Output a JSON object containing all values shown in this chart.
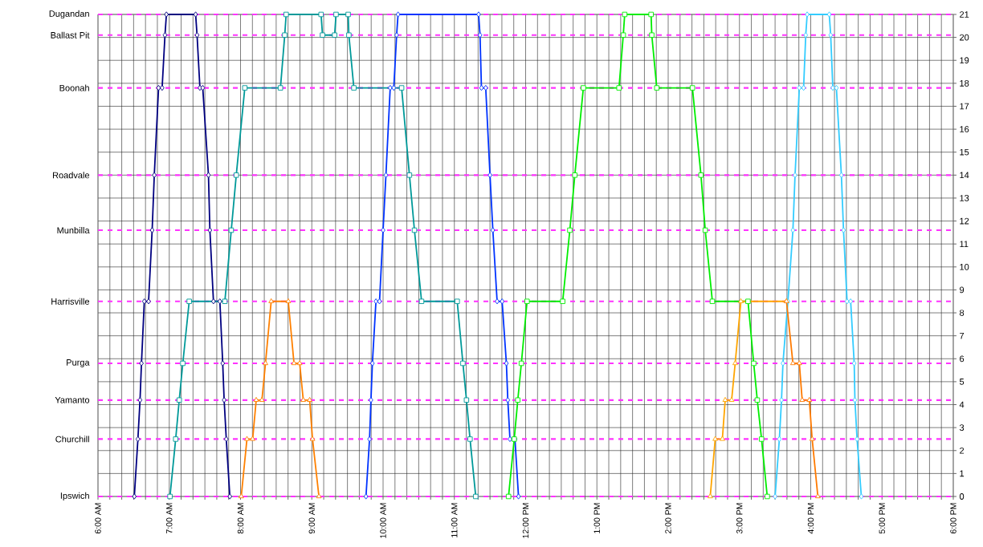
{
  "chart_data": {
    "type": "line",
    "grid": true,
    "xlim": [
      6,
      18
    ],
    "ylim": [
      0,
      21
    ],
    "xticks": [
      {
        "value": 6,
        "label": "6:00 AM"
      },
      {
        "value": 6.1667,
        "label": null
      },
      {
        "value": 6.3333,
        "label": null
      },
      {
        "value": 6.5,
        "label": null
      },
      {
        "value": 6.6667,
        "label": null
      },
      {
        "value": 6.8333,
        "label": null
      },
      {
        "value": 7,
        "label": "7:00 AM"
      },
      {
        "value": 7.1667,
        "label": null
      },
      {
        "value": 7.3333,
        "label": null
      },
      {
        "value": 7.5,
        "label": null
      },
      {
        "value": 7.6667,
        "label": null
      },
      {
        "value": 7.8333,
        "label": null
      },
      {
        "value": 8,
        "label": "8:00 AM"
      },
      {
        "value": 8.1667,
        "label": null
      },
      {
        "value": 8.3333,
        "label": null
      },
      {
        "value": 8.5,
        "label": null
      },
      {
        "value": 8.6667,
        "label": null
      },
      {
        "value": 8.8333,
        "label": null
      },
      {
        "value": 9,
        "label": "9:00 AM"
      },
      {
        "value": 9.1667,
        "label": null
      },
      {
        "value": 9.3333,
        "label": null
      },
      {
        "value": 9.5,
        "label": null
      },
      {
        "value": 9.6667,
        "label": null
      },
      {
        "value": 9.8333,
        "label": null
      },
      {
        "value": 10,
        "label": "10:00 AM"
      },
      {
        "value": 10.1667,
        "label": null
      },
      {
        "value": 10.3333,
        "label": null
      },
      {
        "value": 10.5,
        "label": null
      },
      {
        "value": 10.6667,
        "label": null
      },
      {
        "value": 10.8333,
        "label": null
      },
      {
        "value": 11,
        "label": "11:00 AM"
      },
      {
        "value": 11.1667,
        "label": null
      },
      {
        "value": 11.3333,
        "label": null
      },
      {
        "value": 11.5,
        "label": null
      },
      {
        "value": 11.6667,
        "label": null
      },
      {
        "value": 11.8333,
        "label": null
      },
      {
        "value": 12,
        "label": "12:00 PM"
      },
      {
        "value": 12.1667,
        "label": null
      },
      {
        "value": 12.3333,
        "label": null
      },
      {
        "value": 12.5,
        "label": null
      },
      {
        "value": 12.6667,
        "label": null
      },
      {
        "value": 12.8333,
        "label": null
      },
      {
        "value": 13,
        "label": "1:00 PM"
      },
      {
        "value": 13.1667,
        "label": null
      },
      {
        "value": 13.3333,
        "label": null
      },
      {
        "value": 13.5,
        "label": null
      },
      {
        "value": 13.6667,
        "label": null
      },
      {
        "value": 13.8333,
        "label": null
      },
      {
        "value": 14,
        "label": "2:00 PM"
      },
      {
        "value": 14.1667,
        "label": null
      },
      {
        "value": 14.3333,
        "label": null
      },
      {
        "value": 14.5,
        "label": null
      },
      {
        "value": 14.6667,
        "label": null
      },
      {
        "value": 14.8333,
        "label": null
      },
      {
        "value": 15,
        "label": "3:00 PM"
      },
      {
        "value": 15.1667,
        "label": null
      },
      {
        "value": 15.3333,
        "label": null
      },
      {
        "value": 15.5,
        "label": null
      },
      {
        "value": 15.6667,
        "label": null
      },
      {
        "value": 15.8333,
        "label": null
      },
      {
        "value": 16,
        "label": "4:00 PM"
      },
      {
        "value": 16.1667,
        "label": null
      },
      {
        "value": 16.3333,
        "label": null
      },
      {
        "value": 16.5,
        "label": null
      },
      {
        "value": 16.6667,
        "label": null
      },
      {
        "value": 16.8333,
        "label": null
      },
      {
        "value": 17,
        "label": "5:00 PM"
      },
      {
        "value": 17.1667,
        "label": null
      },
      {
        "value": 17.3333,
        "label": null
      },
      {
        "value": 17.5,
        "label": null
      },
      {
        "value": 17.6667,
        "label": null
      },
      {
        "value": 17.8333,
        "label": null
      },
      {
        "value": 18,
        "label": "6:00 PM"
      }
    ],
    "yticks": [
      0,
      1,
      2,
      3,
      4,
      5,
      6,
      7,
      8,
      9,
      10,
      11,
      12,
      13,
      14,
      15,
      16,
      17,
      18,
      19,
      20,
      21
    ],
    "ref_lines": [
      {
        "axis": "y",
        "value": 21,
        "label": "Dugandan",
        "color": "#ff33ff",
        "line_style": "dashed"
      },
      {
        "axis": "y",
        "value": 20.1,
        "label": "Ballast Pit",
        "color": "#ff33ff",
        "line_style": "dashed"
      },
      {
        "axis": "y",
        "value": 17.8,
        "label": "Boonah",
        "color": "#ff33ff",
        "line_style": "dashed"
      },
      {
        "axis": "y",
        "value": 14,
        "label": "Roadvale",
        "color": "#ff33ff",
        "line_style": "dashed"
      },
      {
        "axis": "y",
        "value": 11.6,
        "label": "Munbilla",
        "color": "#ff33ff",
        "line_style": "dashed"
      },
      {
        "axis": "y",
        "value": 8.5,
        "label": "Harrisville",
        "color": "#ff33ff",
        "line_style": "dashed"
      },
      {
        "axis": "y",
        "value": 5.8,
        "label": "Purga",
        "color": "#ff33ff",
        "line_style": "dashed"
      },
      {
        "axis": "y",
        "value": 4.2,
        "label": "Yamanto",
        "color": "#ff33ff",
        "line_style": "dashed"
      },
      {
        "axis": "y",
        "value": 2.5,
        "label": "Churchill",
        "color": "#ff33ff",
        "line_style": "dashed"
      },
      {
        "axis": "y",
        "value": 0,
        "label": "Ipswich",
        "color": "#ff33ff",
        "line_style": "dashed"
      }
    ],
    "series": [
      {
        "color": "#000080",
        "marker": "diamond",
        "x": [
          6.51,
          6.56,
          6.59,
          6.61,
          6.65,
          6.71,
          6.76,
          6.79,
          6.85,
          6.9,
          6.94,
          6.96,
          7.37,
          7.39,
          7.43,
          7.47,
          7.55,
          7.57,
          7.62,
          7.71,
          7.75,
          7.77,
          7.8,
          7.85
        ],
        "values": [
          0,
          2.5,
          4.2,
          5.8,
          8.5,
          8.5,
          11.6,
          14,
          17.8,
          17.8,
          20.1,
          21,
          21,
          20.1,
          17.8,
          17.8,
          14,
          11.6,
          8.5,
          8.5,
          5.8,
          4.2,
          2.5,
          0
        ]
      },
      {
        "color": "#009999",
        "marker": "square",
        "x": [
          7.01,
          7.09,
          7.14,
          7.19,
          7.28,
          7.78,
          7.87,
          7.94,
          8.06,
          8.56,
          8.62,
          8.64,
          9.13,
          9.15,
          9.32,
          9.34,
          9.51,
          9.52,
          9.59,
          10.26,
          10.37,
          10.44,
          10.54,
          11.04,
          11.12,
          11.17,
          11.22,
          11.3
        ],
        "values": [
          0,
          2.5,
          4.2,
          5.8,
          8.5,
          8.5,
          11.6,
          14,
          17.8,
          17.8,
          20.1,
          21,
          21,
          20.1,
          20.1,
          21,
          21,
          20.1,
          17.8,
          17.8,
          14,
          11.6,
          8.5,
          8.5,
          5.8,
          4.2,
          2.5,
          0
        ]
      },
      {
        "color": "#ff8000",
        "marker": "triangle",
        "x": [
          8.01,
          8.09,
          8.17,
          8.22,
          8.3,
          8.35,
          8.43,
          8.67,
          8.75,
          8.83,
          8.88,
          8.97,
          9.01,
          9.1
        ],
        "values": [
          0,
          2.5,
          2.5,
          4.2,
          4.2,
          5.8,
          8.5,
          8.5,
          5.8,
          5.8,
          4.2,
          4.2,
          2.5,
          0
        ]
      },
      {
        "color": "#0033ff",
        "marker": "diamond",
        "x": [
          9.76,
          9.81,
          9.83,
          9.85,
          9.9,
          9.95,
          10.0,
          10.04,
          10.1,
          10.15,
          10.19,
          10.21,
          11.34,
          11.36,
          11.38,
          11.44,
          11.5,
          11.54,
          11.6,
          11.67,
          11.73,
          11.75,
          11.78,
          11.85,
          11.9
        ],
        "values": [
          0,
          2.5,
          4.2,
          5.8,
          8.5,
          8.5,
          11.6,
          14,
          17.8,
          17.8,
          20.1,
          21,
          21,
          20.1,
          17.8,
          17.8,
          14,
          11.6,
          8.5,
          8.5,
          5.8,
          4.2,
          2.5,
          2.5,
          0
        ]
      },
      {
        "color": "#00ee00",
        "marker": "square",
        "x": [
          11.76,
          11.84,
          11.89,
          11.94,
          12.02,
          12.52,
          12.62,
          12.69,
          12.81,
          13.31,
          13.37,
          13.39,
          13.76,
          13.77,
          13.84,
          14.34,
          14.46,
          14.52,
          14.62,
          15.12,
          15.2,
          15.25,
          15.31,
          15.39
        ],
        "values": [
          0,
          2.5,
          4.2,
          5.8,
          8.5,
          8.5,
          11.6,
          14,
          17.8,
          17.8,
          20.1,
          21,
          21,
          20.1,
          17.8,
          17.8,
          14,
          11.6,
          8.5,
          8.5,
          5.8,
          4.2,
          2.5,
          0
        ]
      },
      {
        "color": "#ffa500",
        "marker": "triangle",
        "x": [
          14.59,
          14.66,
          14.76,
          14.8,
          14.89,
          14.94,
          15.02,
          15.66
        ],
        "values": [
          0,
          2.5,
          2.5,
          4.2,
          4.2,
          5.8,
          8.5,
          8.5
        ]
      },
      {
        "color": "#33ccff",
        "marker": "diamond",
        "x": [
          15.5,
          15.56,
          15.59,
          15.61,
          15.68,
          15.75,
          15.78,
          15.84,
          15.9,
          15.93,
          15.95,
          16.26,
          16.28,
          16.31,
          16.36,
          16.43,
          16.46,
          16.51,
          16.56,
          16.61,
          16.62,
          16.65,
          16.71
        ],
        "values": [
          0,
          2.5,
          4.2,
          5.8,
          8.5,
          11.6,
          14,
          17.8,
          17.8,
          20.1,
          21,
          21,
          20.1,
          17.8,
          17.8,
          14,
          11.6,
          8.5,
          8.5,
          5.8,
          4.2,
          2.5,
          0
        ]
      },
      {
        "color": "#ff7a00",
        "marker": "triangle",
        "x": [
          15.66,
          15.75,
          15.84,
          15.88,
          15.98,
          16.02,
          16.1
        ],
        "values": [
          8.5,
          5.8,
          5.8,
          4.2,
          4.2,
          2.5,
          0
        ]
      }
    ]
  }
}
